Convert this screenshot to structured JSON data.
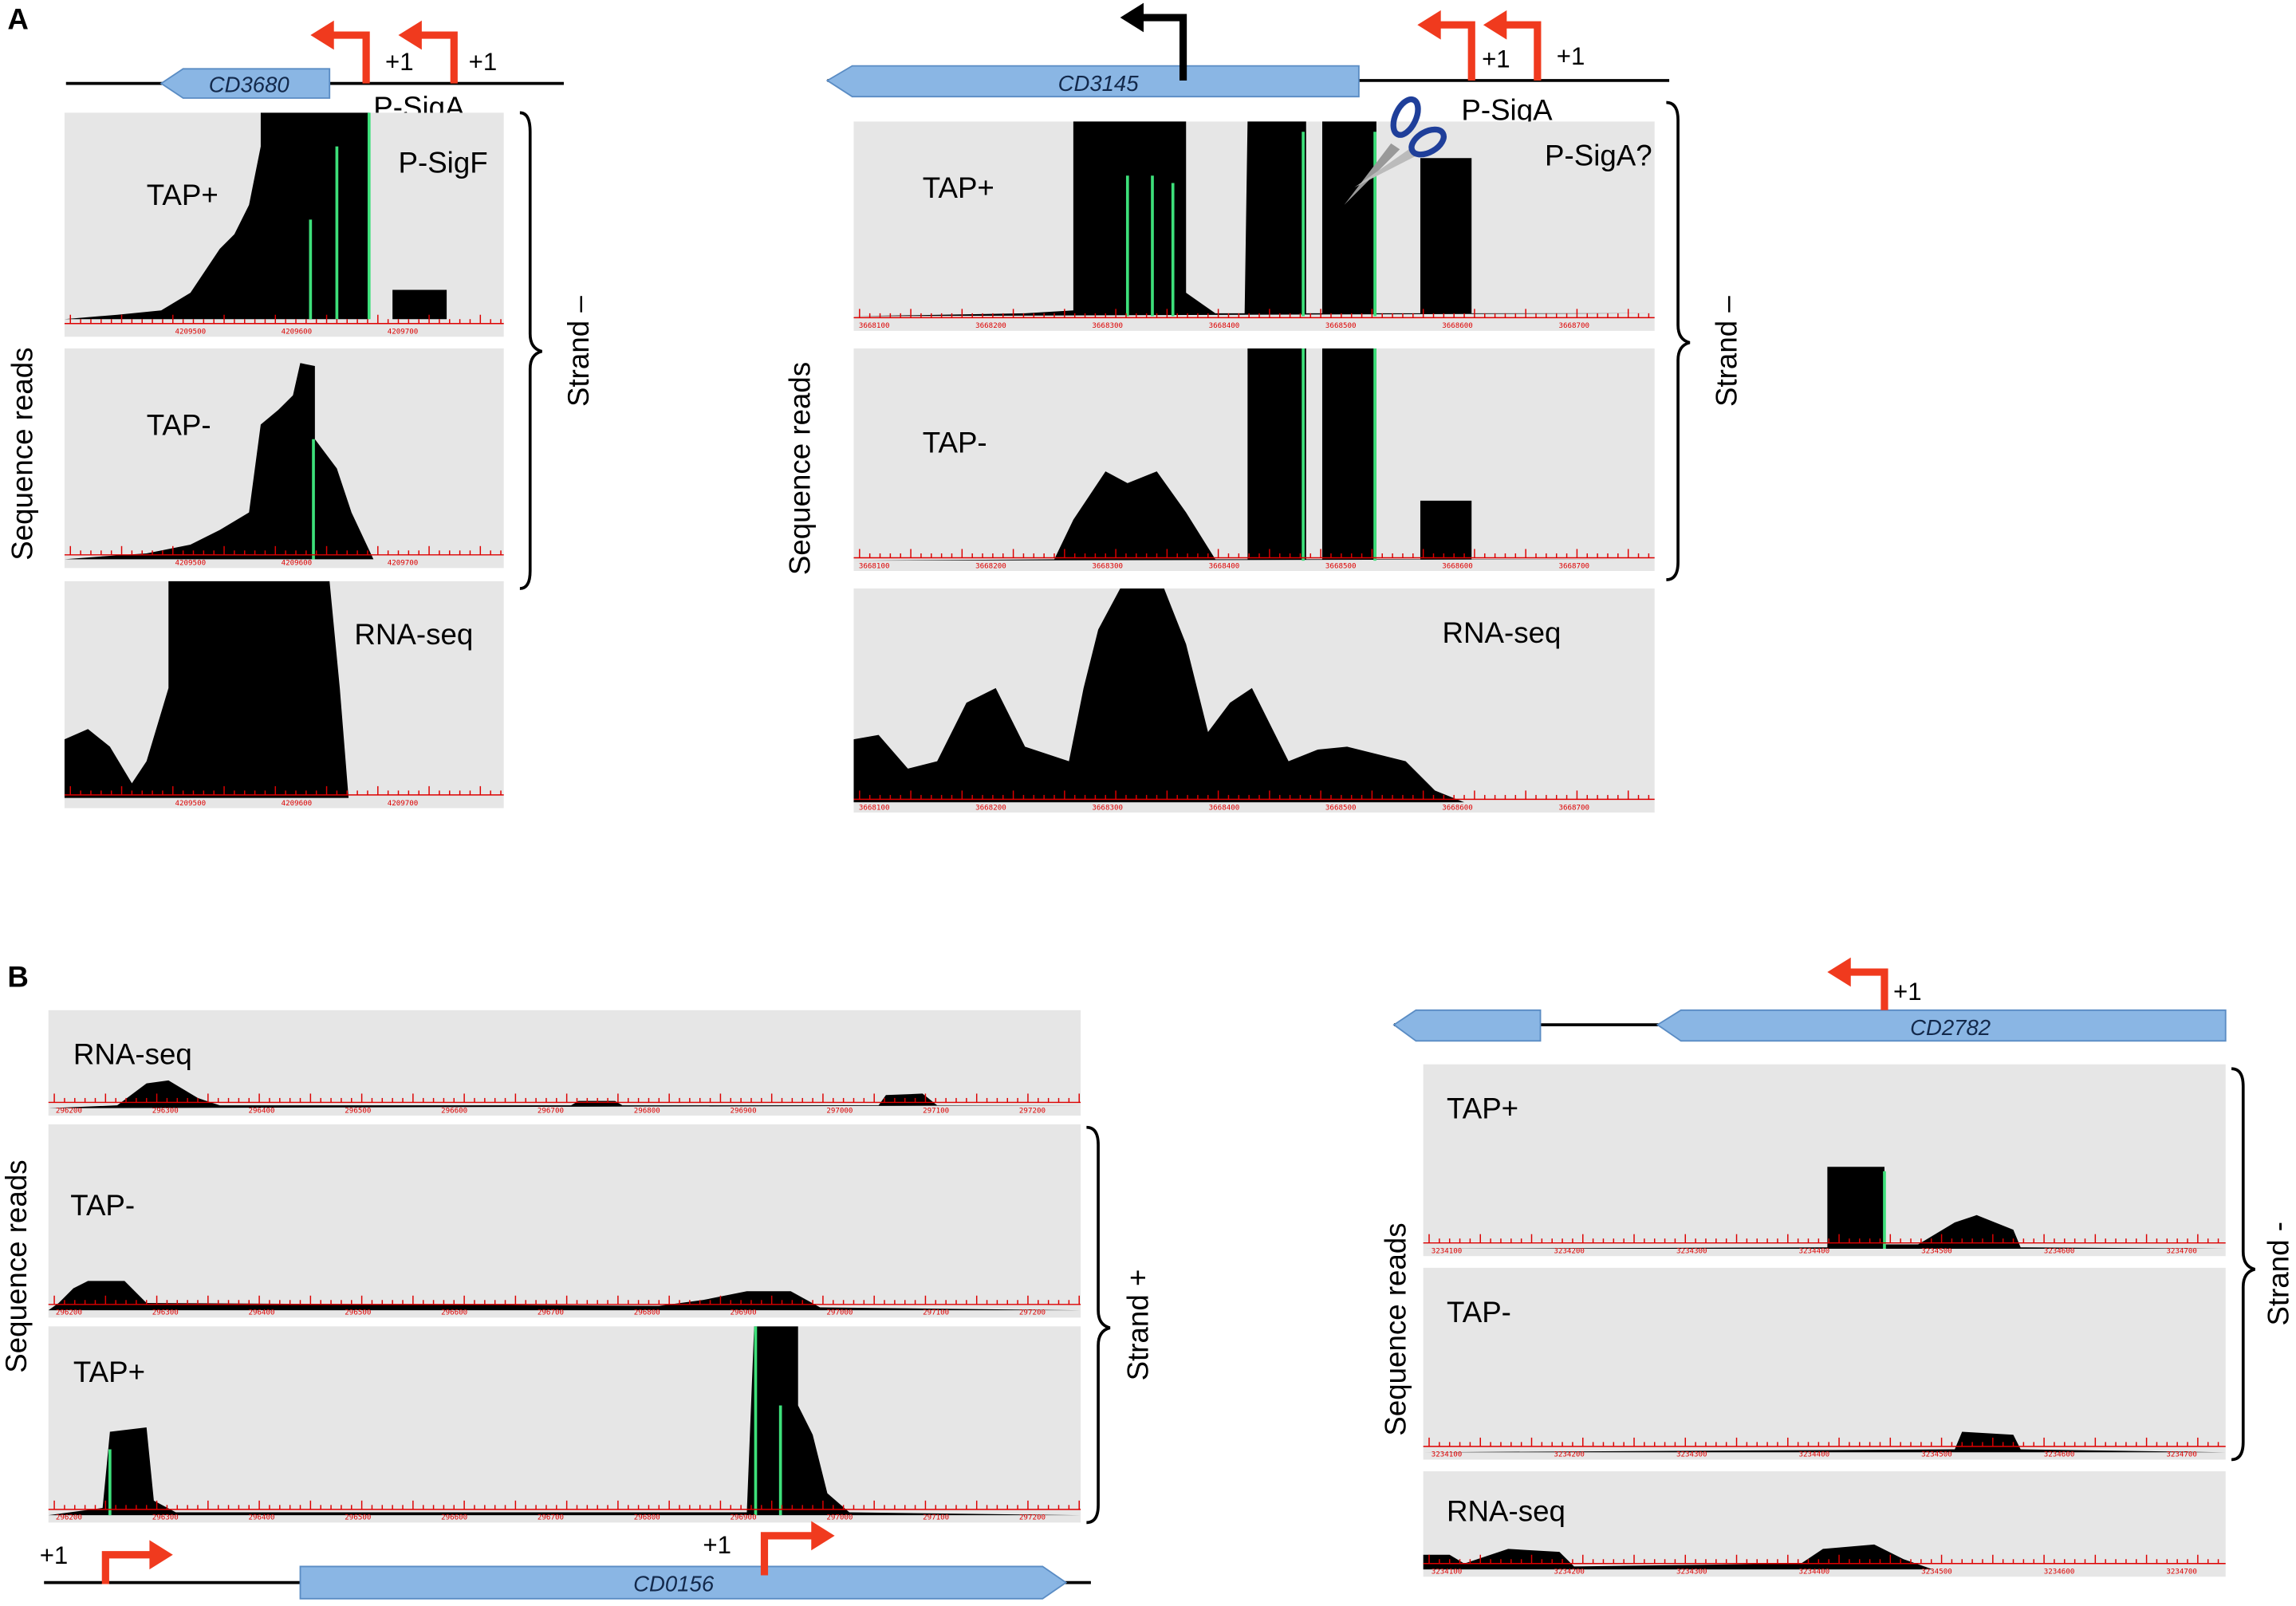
{
  "panel_a": {
    "label": "A",
    "left": {
      "gene": "CD3680",
      "start_sites": [
        "+1",
        "+1"
      ],
      "promoters": [
        "P-SigA",
        "P-SigF"
      ],
      "y_label": "Sequence reads",
      "strand": "Strand –",
      "tracks": [
        {
          "label": "TAP+"
        },
        {
          "label": "TAP-"
        },
        {
          "label": "RNA-seq"
        }
      ],
      "ticks": [
        "4209500",
        "4209600",
        "4209700"
      ]
    },
    "right": {
      "gene": "CD3145",
      "start_sites": [
        "+1",
        "+1"
      ],
      "promoters": [
        "P-SigA",
        "P-SigA?"
      ],
      "y_label": "Sequence reads",
      "strand": "Strand –",
      "tracks": [
        {
          "label": "TAP+"
        },
        {
          "label": "TAP-"
        },
        {
          "label": "RNA-seq"
        }
      ],
      "ticks": [
        "3668100",
        "3668200",
        "3668300",
        "3668400",
        "3668500",
        "3668600",
        "3668700"
      ]
    }
  },
  "panel_b": {
    "label": "B",
    "left": {
      "gene": "CD0156",
      "start_sites": [
        "+1",
        "+1"
      ],
      "y_label": "Sequence reads",
      "strand": "Strand +",
      "tracks": [
        {
          "label": "RNA-seq"
        },
        {
          "label": "TAP-"
        },
        {
          "label": "TAP+"
        }
      ],
      "ticks": [
        "296200",
        "296300",
        "296400",
        "296500",
        "296600",
        "296700",
        "296800",
        "296900",
        "297000",
        "297100",
        "297200"
      ]
    },
    "right": {
      "gene": "CD2782",
      "start_sites": [
        "+1"
      ],
      "y_label": "Sequence reads",
      "strand": "Strand -",
      "tracks": [
        {
          "label": "TAP+"
        },
        {
          "label": "TAP-"
        },
        {
          "label": "RNA-seq"
        }
      ],
      "ticks": [
        "3234100",
        "3234200",
        "3234300",
        "3234400",
        "3234500",
        "3234600",
        "3234700"
      ]
    }
  }
}
